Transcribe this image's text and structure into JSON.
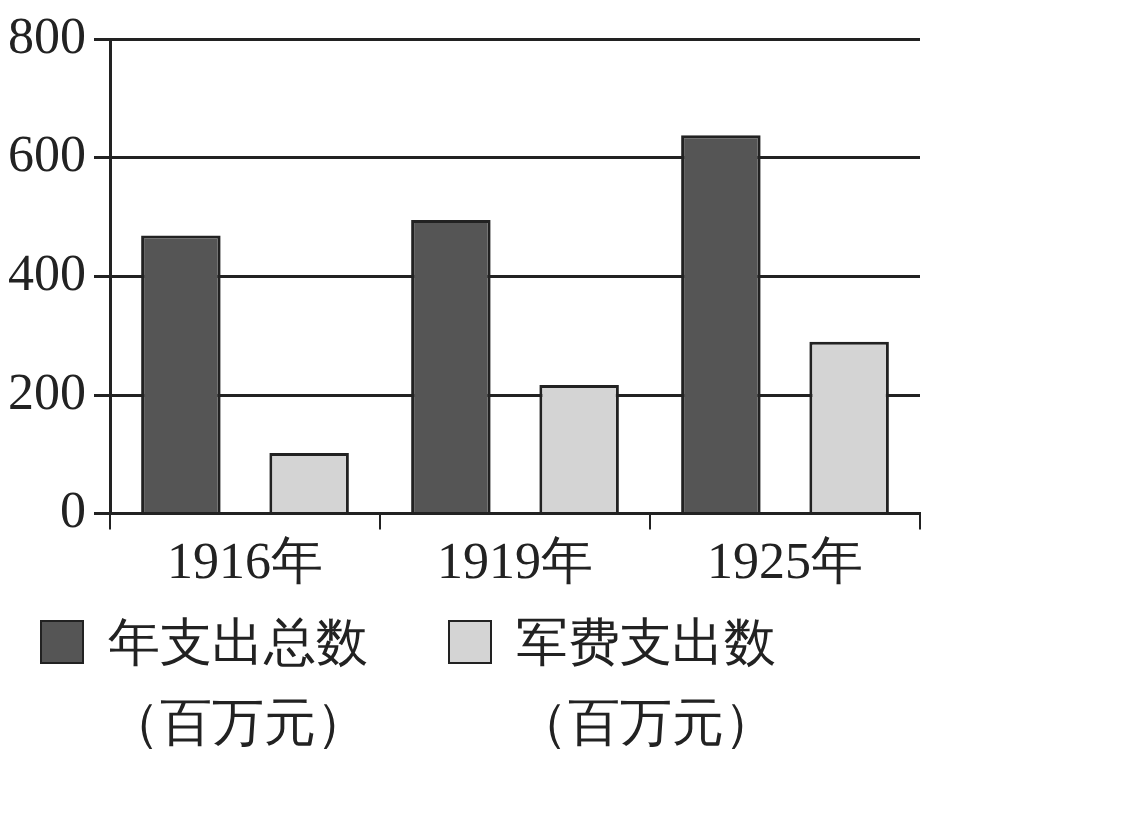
{
  "chart_data": {
    "type": "bar",
    "categories": [
      "1916年",
      "1919年",
      "1925年"
    ],
    "series": [
      {
        "name": "年支出总数（百万元）",
        "color": "#555555",
        "values": [
          469,
          495,
          638
        ]
      },
      {
        "name": "军费支出数（百万元）",
        "color": "#d4d4d4",
        "values": [
          102,
          217,
          290
        ]
      }
    ],
    "ylim": [
      0,
      800
    ],
    "yticks": [
      0,
      200,
      400,
      600,
      800
    ],
    "grid": "y",
    "legend": "bottom"
  }
}
